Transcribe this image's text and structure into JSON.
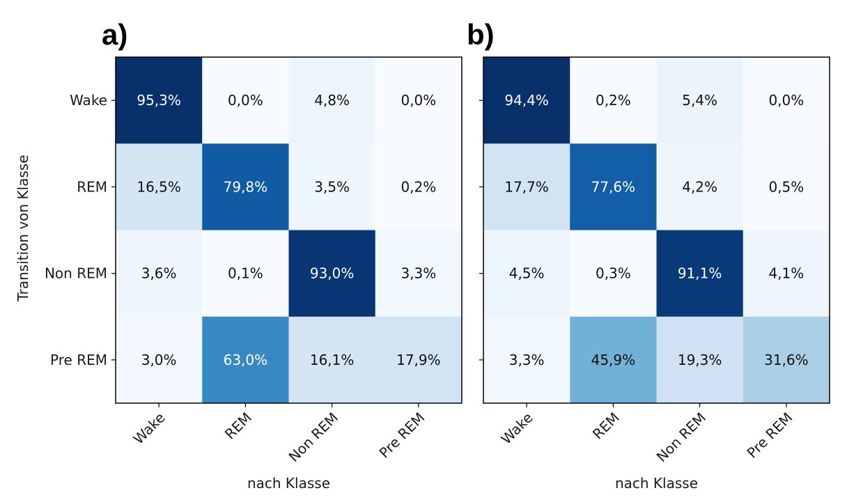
{
  "chart_data": [
    {
      "type": "heatmap",
      "panel_label": "a)",
      "row_labels": [
        "Wake",
        "REM",
        "Non REM",
        "Pre REM"
      ],
      "col_labels": [
        "Wake",
        "REM",
        "Non REM",
        "Pre REM"
      ],
      "values": [
        [
          95.3,
          0.0,
          4.8,
          0.0
        ],
        [
          16.5,
          79.8,
          3.5,
          0.2
        ],
        [
          3.6,
          0.1,
          93.0,
          3.3
        ],
        [
          3.0,
          63.0,
          16.1,
          17.9
        ]
      ],
      "cell_labels": [
        [
          "95,3%",
          "0,0%",
          "4,8%",
          "0,0%"
        ],
        [
          "16,5%",
          "79,8%",
          "3,5%",
          "0,2%"
        ],
        [
          "3,6%",
          "0,1%",
          "93,0%",
          "3,3%"
        ],
        [
          "3,0%",
          "63,0%",
          "16,1%",
          "17,9%"
        ]
      ],
      "xlabel": "nach Klasse",
      "ylabel": "Transition von Klasse",
      "colormap": "Blues"
    },
    {
      "type": "heatmap",
      "panel_label": "b)",
      "row_labels": [
        "Wake",
        "REM",
        "Non REM",
        "Pre REM"
      ],
      "col_labels": [
        "Wake",
        "REM",
        "Non REM",
        "Pre REM"
      ],
      "values": [
        [
          94.4,
          0.2,
          5.4,
          0.0
        ],
        [
          17.7,
          77.6,
          4.2,
          0.5
        ],
        [
          4.5,
          0.3,
          91.1,
          4.1
        ],
        [
          3.3,
          45.9,
          19.3,
          31.6
        ]
      ],
      "cell_labels": [
        [
          "94,4%",
          "0,2%",
          "5,4%",
          "0,0%"
        ],
        [
          "17,7%",
          "77,6%",
          "4,2%",
          "0,5%"
        ],
        [
          "4,5%",
          "0,3%",
          "91,1%",
          "4,1%"
        ],
        [
          "3,3%",
          "45,9%",
          "19,3%",
          "31,6%"
        ]
      ],
      "xlabel": "nach Klasse",
      "ylabel": "",
      "colormap": "Blues"
    }
  ]
}
